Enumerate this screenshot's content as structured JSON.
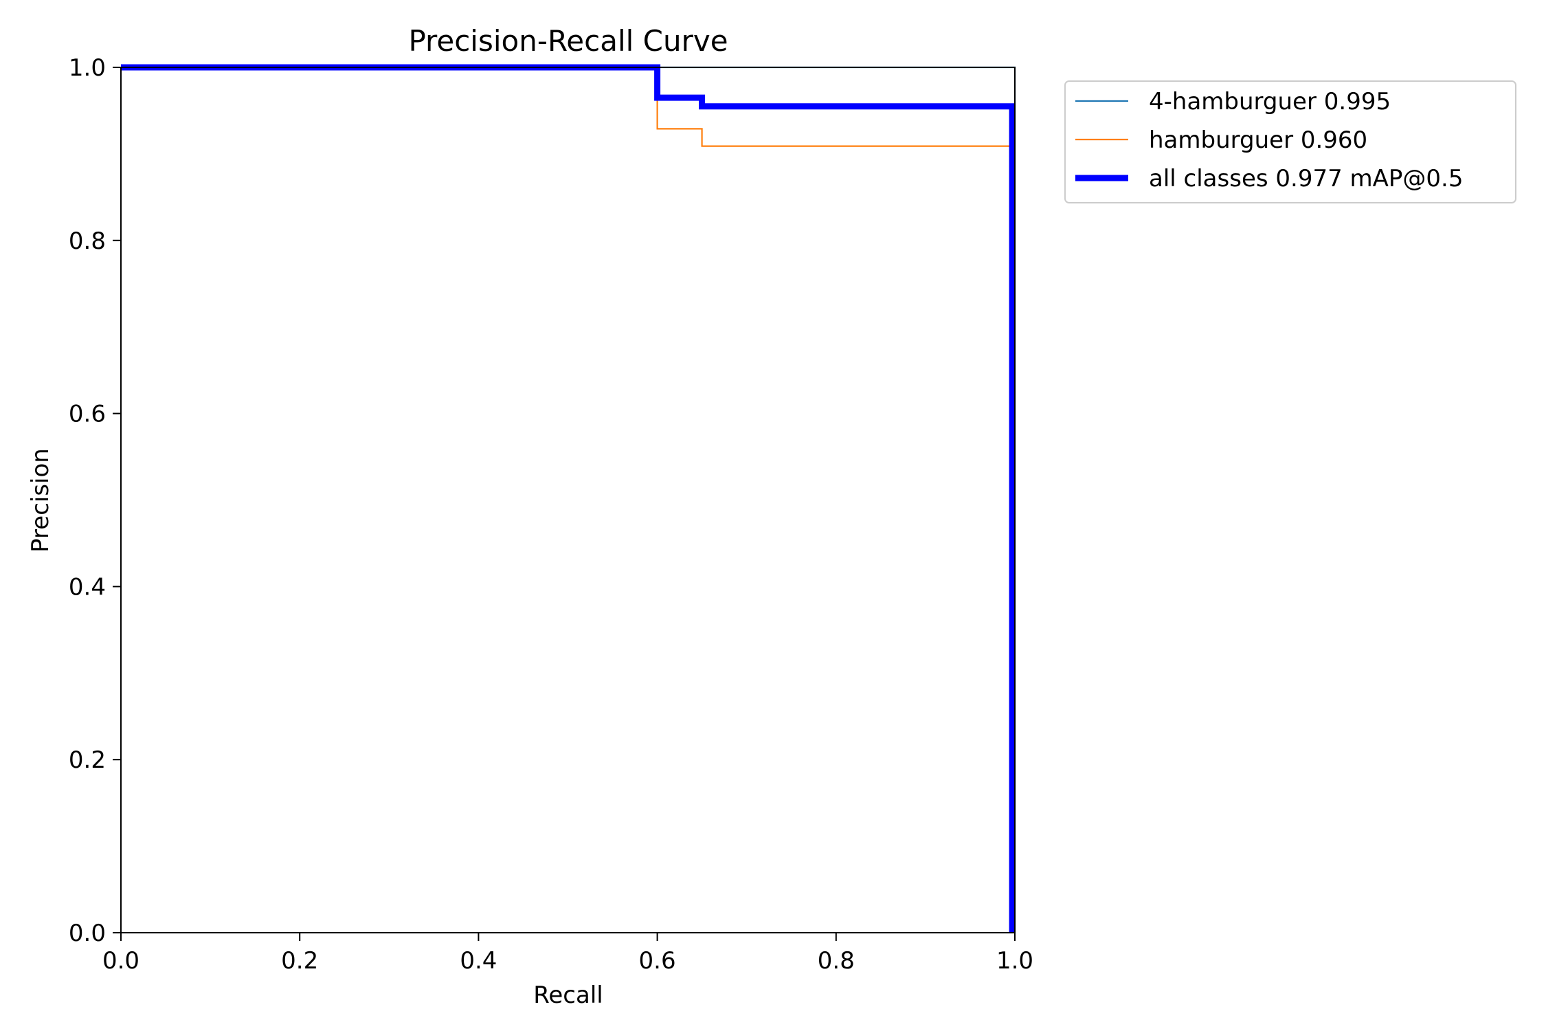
{
  "chart_data": {
    "type": "line",
    "title": "Precision-Recall Curve",
    "xlabel": "Recall",
    "ylabel": "Precision",
    "xlim": [
      0.0,
      1.0
    ],
    "ylim": [
      0.0,
      1.0
    ],
    "xticks": [
      0.0,
      0.2,
      0.4,
      0.6,
      0.8,
      1.0
    ],
    "yticks": [
      0.0,
      0.2,
      0.4,
      0.6,
      0.8,
      1.0
    ],
    "xtick_labels": [
      "0.0",
      "0.2",
      "0.4",
      "0.6",
      "0.8",
      "1.0"
    ],
    "ytick_labels": [
      "0.0",
      "0.2",
      "0.4",
      "0.6",
      "0.8",
      "1.0"
    ],
    "grid": false,
    "legend_position": "outside-top-right",
    "series": [
      {
        "name": "4-hamburguer 0.995",
        "color": "#1f77b4",
        "style": "thin",
        "x": [
          0.0,
          0.997,
          0.997,
          1.0,
          1.0
        ],
        "y": [
          1.0,
          1.0,
          1.0,
          1.0,
          0.0
        ]
      },
      {
        "name": "hamburguer 0.960",
        "color": "#ff7f0e",
        "style": "thin",
        "x": [
          0.0,
          0.6,
          0.6,
          0.65,
          0.65,
          0.997,
          0.997
        ],
        "y": [
          1.0,
          1.0,
          0.929,
          0.929,
          0.909,
          0.909,
          0.0
        ]
      },
      {
        "name": "all classes 0.977 mAP@0.5",
        "color": "#0000ff",
        "style": "thick",
        "x": [
          0.0,
          0.6,
          0.6,
          0.65,
          0.65,
          0.997,
          0.997
        ],
        "y": [
          1.0,
          1.0,
          0.965,
          0.965,
          0.955,
          0.955,
          0.0
        ]
      }
    ]
  }
}
